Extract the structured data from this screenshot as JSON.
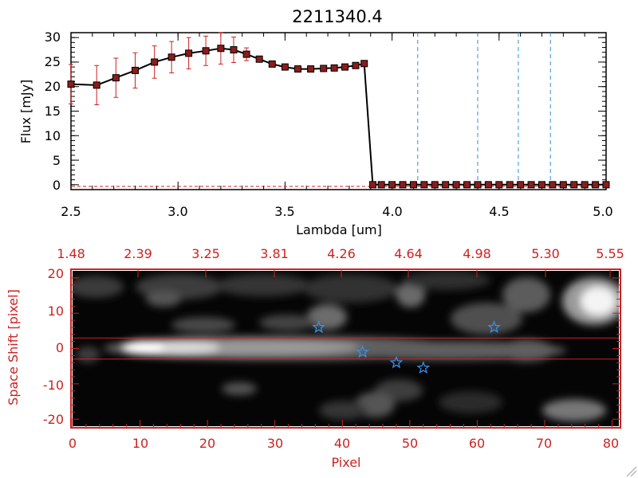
{
  "chart_data": [
    {
      "type": "line",
      "title": "2211340.4",
      "xlabel": "Lambda [um]",
      "ylabel": "Flux [mJy]",
      "xlim": [
        2.5,
        5.0
      ],
      "ylim": [
        -1,
        31
      ],
      "x_ticks": [
        "2.5",
        "3.0",
        "3.5",
        "4.0",
        "4.5",
        "5.0"
      ],
      "y_ticks": [
        "0",
        "5",
        "10",
        "15",
        "20",
        "25",
        "30"
      ],
      "colors": {
        "line": "#000000",
        "marker": "#8b1c1c",
        "errorbar": "#cc2222",
        "vline": "#2f8fd8",
        "baseline": "#cc2222"
      },
      "series": [
        {
          "name": "flux",
          "x": [
            2.5,
            2.62,
            2.71,
            2.8,
            2.89,
            2.97,
            3.05,
            3.13,
            3.2,
            3.26,
            3.32,
            3.38,
            3.44,
            3.5,
            3.56,
            3.62,
            3.68,
            3.73,
            3.78,
            3.83,
            3.87,
            3.91,
            3.95,
            4.0,
            4.05,
            4.1,
            4.15,
            4.2,
            4.25,
            4.3,
            4.35,
            4.4,
            4.45,
            4.5,
            4.55,
            4.6,
            4.65,
            4.7,
            4.75,
            4.8,
            4.85,
            4.9,
            4.95,
            5.0
          ],
          "values": [
            20.5,
            20.3,
            21.8,
            23.3,
            25.0,
            26.0,
            26.8,
            27.3,
            27.8,
            27.5,
            26.6,
            25.6,
            24.6,
            24.0,
            23.6,
            23.6,
            23.7,
            23.8,
            24.0,
            24.3,
            24.7,
            0.0,
            0.0,
            0.0,
            0.0,
            0.0,
            0.0,
            0.0,
            0.0,
            0.0,
            0.0,
            0.0,
            0.0,
            0.0,
            0.0,
            0.0,
            0.0,
            0.0,
            0.0,
            0.0,
            0.0,
            0.0,
            0.0,
            0.0
          ],
          "errors": [
            4.0,
            4.0,
            4.0,
            3.6,
            3.3,
            3.2,
            3.2,
            3.0,
            3.2,
            2.6,
            1.3,
            0,
            0,
            0,
            0,
            0,
            0,
            0,
            0,
            0,
            0,
            0,
            0,
            0,
            0,
            0,
            0,
            0,
            0,
            0,
            0,
            0,
            0,
            0,
            0,
            0,
            0,
            0,
            0,
            0,
            0,
            0,
            0,
            0
          ]
        }
      ],
      "vlines": [
        4.12,
        4.4,
        4.59,
        4.74
      ]
    },
    {
      "type": "heatmap",
      "xlabel": "Pixel",
      "ylabel": "Space Shift [pixel]",
      "xlim": [
        0,
        81
      ],
      "ylim": [
        -22,
        22
      ],
      "x_ticks": [
        "0",
        "10",
        "20",
        "30",
        "40",
        "50",
        "60",
        "70",
        "80"
      ],
      "y_ticks": [
        "-20",
        "-10",
        "0",
        "10",
        "20"
      ],
      "top_ticks": [
        "1.48",
        "2.39",
        "3.25",
        "3.81",
        "4.26",
        "4.64",
        "4.98",
        "5.30",
        "5.55"
      ],
      "hlines": [
        3,
        -3
      ],
      "stars": [
        {
          "x": 36.5,
          "y": 6
        },
        {
          "x": 43,
          "y": -1
        },
        {
          "x": 48,
          "y": -4
        },
        {
          "x": 52,
          "y": -5.5
        },
        {
          "x": 62.5,
          "y": 6
        }
      ],
      "colors": {
        "frame": "#cc2222",
        "star": "#3a8ee6",
        "hline": "#cc2222"
      }
    }
  ]
}
